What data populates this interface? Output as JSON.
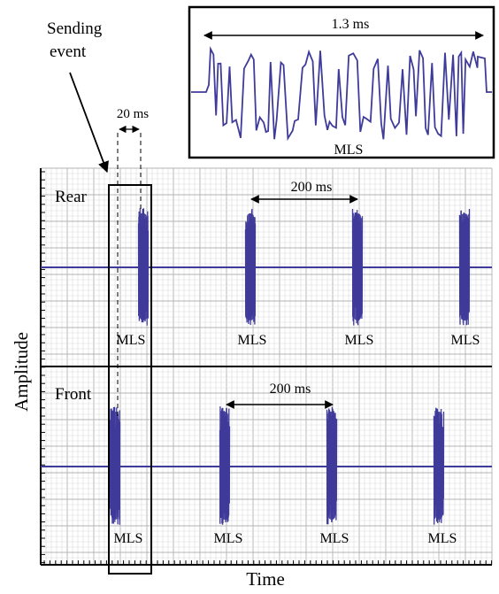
{
  "annotation": {
    "sending_event_line1": "Sending",
    "sending_event_line2": "event",
    "gap_20": "20 ms"
  },
  "inset": {
    "duration": "1.3 ms",
    "label": "MLS"
  },
  "rear": {
    "label": "Rear",
    "interval": "200 ms",
    "pulse_labels": [
      "MLS",
      "MLS",
      "MLS",
      "MLS"
    ]
  },
  "front": {
    "label": "Front",
    "interval": "200 ms",
    "pulse_labels": [
      "MLS",
      "MLS",
      "MLS",
      "MLS"
    ]
  },
  "axes": {
    "y_label": "Amplitude",
    "x_label": "Time"
  },
  "colors": {
    "signal": "#3f3b9a",
    "grid_minor": "#d9d9d9",
    "grid_major": "#b3b3b3",
    "frame": "#000000"
  }
}
